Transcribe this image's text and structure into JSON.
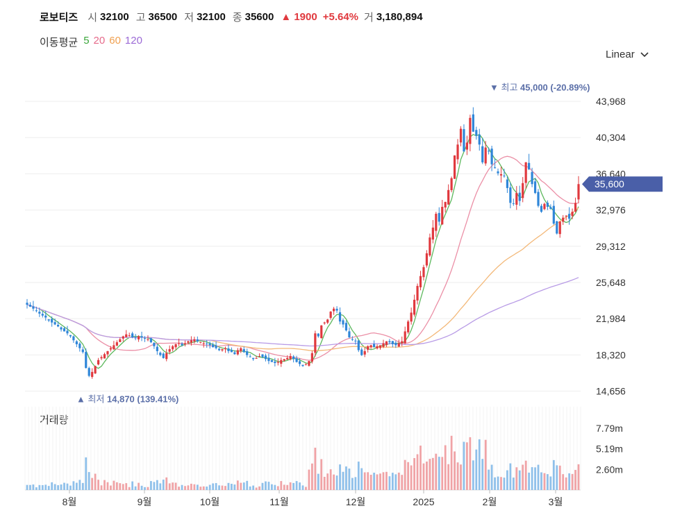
{
  "header": {
    "name": "로보티즈",
    "open_label": "시",
    "open": "32100",
    "high_label": "고",
    "high": "36500",
    "low_label": "저",
    "low": "32100",
    "close_label": "종",
    "close": "35600",
    "change": "▲ 1900",
    "change_pct": "+5.64%",
    "volume_label": "거",
    "volume": "3,180,894"
  },
  "ma_legend": {
    "title": "이동평균",
    "items": [
      {
        "label": "5",
        "color": "#3aa63a"
      },
      {
        "label": "20",
        "color": "#e66a8a"
      },
      {
        "label": "60",
        "color": "#f0a050"
      },
      {
        "label": "120",
        "color": "#9b6ad6"
      }
    ]
  },
  "scale": {
    "label": "Linear"
  },
  "volume_panel": {
    "title": "거래량"
  },
  "colors": {
    "up": "#e0393e",
    "down": "#2f86d8",
    "current_badge": "#4a5fa8",
    "annotation": "#5b6fa8"
  },
  "chart_data": {
    "type": "candlestick",
    "y_ticks": [
      "43,968",
      "40,304",
      "36,640",
      "32,976",
      "29,312",
      "25,648",
      "21,984",
      "18,320",
      "14,656"
    ],
    "y_tick_values": [
      43968,
      40304,
      36640,
      32976,
      29312,
      25648,
      21984,
      18320,
      14656
    ],
    "ylim": [
      13500,
      46500
    ],
    "x_labels": [
      "8월",
      "9월",
      "10월",
      "11월",
      "12월",
      "2025",
      "2월",
      "3월"
    ],
    "current_price_label": "35,600",
    "current_price": 35600,
    "high_annotation": {
      "prefix": "최고",
      "value": "45,000",
      "pct": "(-20.89%)",
      "price": 45000
    },
    "low_annotation": {
      "prefix": "최저",
      "value": "14,870",
      "pct": "(139.41%)",
      "price": 14870
    },
    "volume_ticks": [
      "7.79m",
      "5.19m",
      "2.60m"
    ],
    "volume_tick_values": [
      7.79,
      5.19,
      2.6
    ],
    "vol_max": 10.5,
    "closes": [
      23400,
      23200,
      23000,
      22800,
      22500,
      22300,
      22100,
      21800,
      21600,
      21400,
      21200,
      20900,
      20700,
      20500,
      20200,
      19800,
      19400,
      19000,
      18600,
      17000,
      16200,
      16600,
      17200,
      17800,
      18100,
      18400,
      18700,
      19000,
      19300,
      19600,
      19900,
      20200,
      20400,
      20300,
      20100,
      20000,
      20200,
      20100,
      20000,
      19900,
      19600,
      19200,
      18700,
      18300,
      18000,
      18500,
      18900,
      19200,
      19400,
      19500,
      19300,
      19500,
      19700,
      19800,
      19900,
      19700,
      19600,
      19500,
      19400,
      19300,
      19100,
      19000,
      18800,
      18900,
      19000,
      18700,
      18600,
      18400,
      18800,
      19000,
      18600,
      18300,
      18100,
      17900,
      18000,
      18200,
      18100,
      17900,
      17700,
      17600,
      17500,
      17600,
      17800,
      17900,
      18000,
      18200,
      17900,
      17600,
      17400,
      17200,
      17400,
      17700,
      18500,
      20500,
      20200,
      21300,
      21600,
      21900,
      22700,
      23000,
      22800,
      21700,
      21400,
      20800,
      20100,
      19900,
      19700,
      18800,
      18300,
      18700,
      19200,
      19300,
      19100,
      19200,
      19300,
      19500,
      19700,
      19600,
      19400,
      19300,
      19500,
      19700,
      20700,
      21700,
      22600,
      23900,
      25300,
      26300,
      27200,
      28600,
      30200,
      31200,
      32600,
      31800,
      33300,
      33800,
      35000,
      36200,
      38500,
      39600,
      41200,
      38900,
      39800,
      42300,
      40900,
      40500,
      39600,
      37800,
      39300,
      38900,
      37600,
      37200,
      36700,
      36600,
      36400,
      35200,
      33700,
      33600,
      34700,
      33900,
      35700,
      37800,
      37100,
      35600,
      34700,
      33400,
      32800,
      33600,
      33300,
      33100,
      31600,
      30600,
      31800,
      32200,
      32400,
      32100,
      32800,
      33700,
      35600
    ]
  }
}
